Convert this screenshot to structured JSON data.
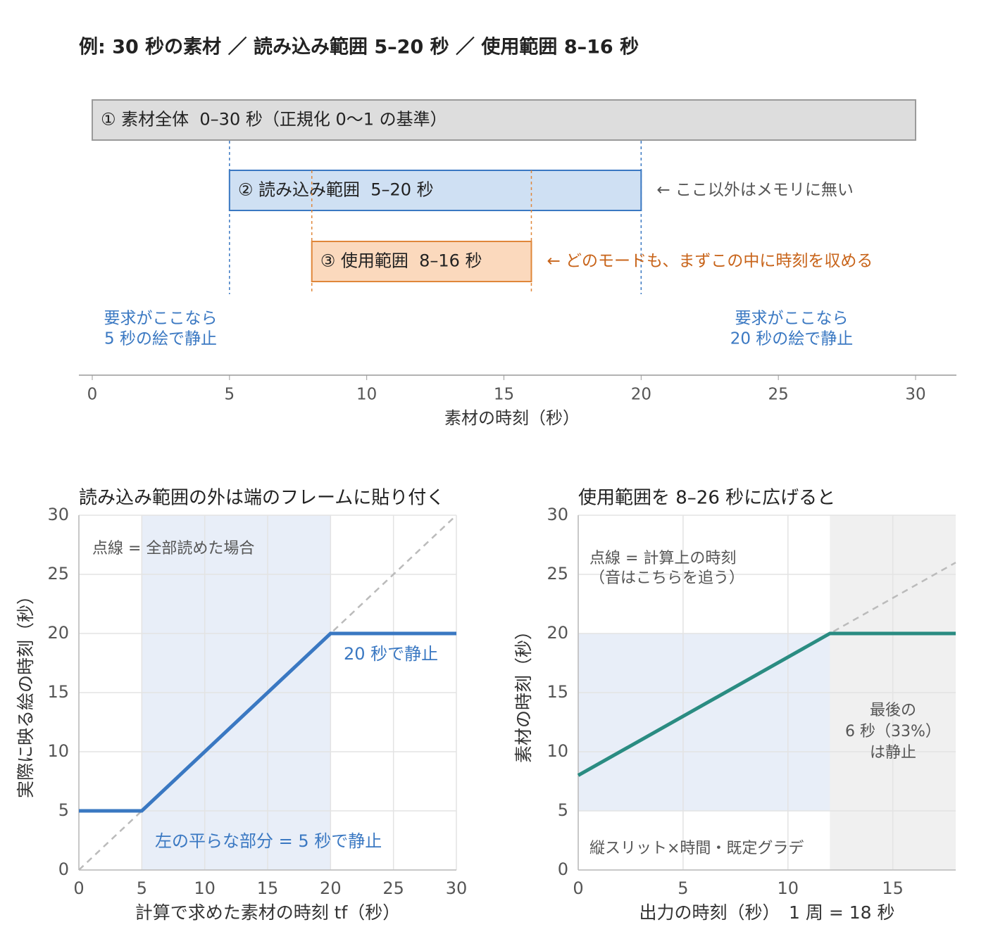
{
  "chart_data": [
    {
      "type": "range",
      "title": "例: 30 秒の素材 ／ 読み込み範囲 5–20 秒 ／ 使用範囲 8–16 秒",
      "xlabel": "素材の時刻（秒）",
      "xlim": [
        0,
        30
      ],
      "xticks": [
        0,
        5,
        10,
        15,
        20,
        25,
        30
      ],
      "ranges": [
        {
          "label": "① 素材全体  0–30 秒（正規化 0〜1 の基準）",
          "start": 0,
          "end": 30,
          "fill": "#dddddd",
          "stroke": "#9a9a9a"
        },
        {
          "label": "② 読み込み範囲  5–20 秒",
          "start": 5,
          "end": 20,
          "fill": "#cfe0f3",
          "stroke": "#3a78c2",
          "note": "← ここ以外はメモリに無い",
          "note_color": "#555555"
        },
        {
          "label": "③ 使用範囲  8–16 秒",
          "start": 8,
          "end": 16,
          "fill": "#fbd9bd",
          "stroke": "#e0873a",
          "note": "← どのモードも、まずこの中に時刻を収める",
          "note_color": "#c8641a"
        }
      ],
      "annotations": [
        {
          "text": [
            "要求がここなら",
            "5 秒の絵で静止"
          ],
          "color": "#3a78c2"
        },
        {
          "text": [
            "要求がここなら",
            "20 秒の絵で静止"
          ],
          "color": "#3a78c2"
        }
      ]
    },
    {
      "type": "line",
      "title": "読み込み範囲の外は端のフレームに貼り付く",
      "xlabel": "計算で求めた素材の時刻 tf（秒）",
      "ylabel": "実際に映る絵の時刻（秒）",
      "xlim": [
        0,
        30
      ],
      "ylim": [
        0,
        30
      ],
      "xticks": [
        0,
        5,
        10,
        15,
        20,
        25,
        30
      ],
      "yticks": [
        0,
        5,
        10,
        15,
        20,
        25,
        30
      ],
      "grid": true,
      "spans": [
        {
          "x": [
            5,
            20
          ],
          "color": "#e8eef8"
        }
      ],
      "series": [
        {
          "color": "#bbbbbb",
          "dashed": true,
          "x": [
            0,
            30
          ],
          "values": [
            0,
            30
          ]
        },
        {
          "color": "#3a78c2",
          "x": [
            0,
            5,
            20,
            30
          ],
          "values": [
            5,
            5,
            20,
            20
          ]
        }
      ],
      "annotations": [
        {
          "text": [
            "点線 = 全部読めた場合"
          ],
          "color": "#555555"
        },
        {
          "text": [
            "20 秒で静止"
          ],
          "color": "#3a78c2"
        },
        {
          "text": [
            "左の平らな部分 = 5 秒で静止"
          ],
          "color": "#3a78c2"
        }
      ]
    },
    {
      "type": "line",
      "title": "使用範囲を 8–26 秒に広げると",
      "xlabel": "出力の時刻（秒）　1 周 = 18 秒",
      "ylabel": "素材の時刻（秒）",
      "xlim": [
        0,
        18
      ],
      "ylim": [
        0,
        30
      ],
      "xticks": [
        0,
        5,
        10,
        15
      ],
      "yticks": [
        0,
        5,
        10,
        15,
        20,
        25,
        30
      ],
      "grid": true,
      "spans": [
        {
          "x": [
            0,
            12
          ],
          "y": [
            5,
            20
          ],
          "color": "#e8eef8"
        },
        {
          "x": [
            12,
            18
          ],
          "color": "rgba(160,160,160,0.16)"
        }
      ],
      "series": [
        {
          "color": "#bbbbbb",
          "dashed": true,
          "x": [
            0,
            18
          ],
          "values": [
            8,
            26
          ]
        },
        {
          "color": "#2a8c82",
          "x": [
            0,
            12,
            18
          ],
          "values": [
            8,
            20,
            20
          ]
        }
      ],
      "annotations": [
        {
          "text": [
            "点線 = 計算上の時刻",
            "（音はこちらを追う）"
          ],
          "color": "#555555"
        },
        {
          "text": [
            "最後の",
            "6 秒（33%）",
            "は静止"
          ],
          "color": "#555555"
        },
        {
          "text": [
            "縦スリット×時間・既定グラデ"
          ],
          "color": "#555555"
        }
      ]
    }
  ]
}
